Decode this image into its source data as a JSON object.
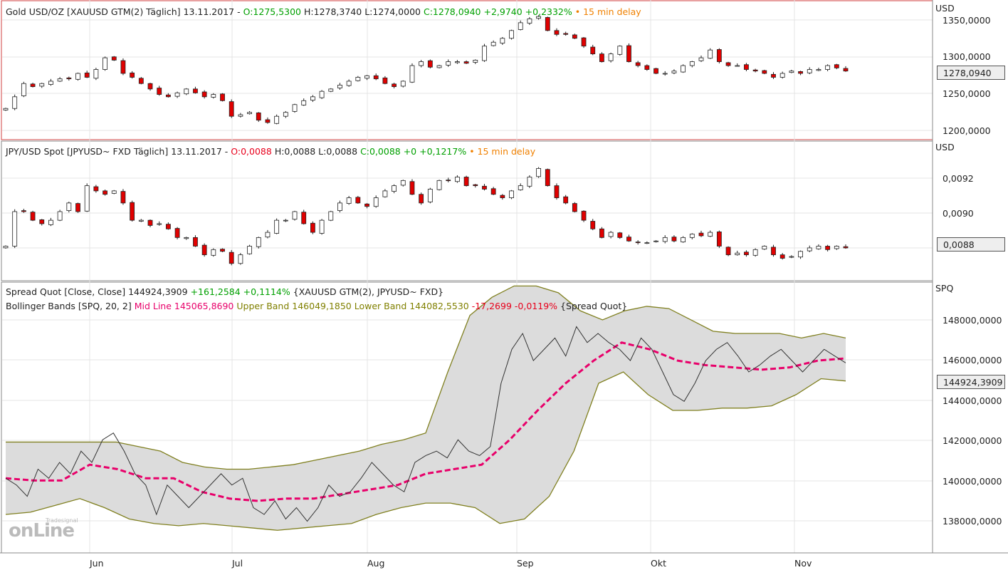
{
  "panel1": {
    "title": "Gold USD/OZ [XAUUSD GTM(2) Täglich] 13.11.2017 -",
    "open": "O:1275,5300",
    "high": "H:1278,3740",
    "low": "L:1274,0000",
    "close": "C:1278,0940 +2,9740 +0,2332%",
    "delay": "• 15 min delay",
    "unit": "USD",
    "ticks": [
      "1350,0000",
      "1300,0000",
      "1250,0000",
      "1200,0000"
    ],
    "last": "1278,0940"
  },
  "panel2": {
    "title": "JPY/USD Spot [JPYUSD~ FXD Täglich] 13.11.2017 -",
    "open": "O:0,0088",
    "high": "H:0,0088",
    "low": "L:0,0088",
    "close": "C:0,0088 +0 +0,1217%",
    "delay": "• 15 min delay",
    "unit": "USD",
    "ticks": [
      "0,0092",
      "0,0090"
    ],
    "last": "0,0088"
  },
  "panel3": {
    "line1": "Spread Quot [Close, Close]",
    "value": "144924,3909",
    "change": "+161,2584 +0,1114%",
    "symbols": "{XAUUSD GTM(2), JPYUSD~ FXD}",
    "bb": "Bollinger Bands [SPQ, 20, 2]",
    "mid": "Mid Line 145065,8690",
    "bands": "Upper Band 146049,1850 Lower Band 144082,5530",
    "bbchg": "-17,2699 -0,0119%",
    "src": "{Spread Quot}",
    "unit": "SPQ",
    "ticks": [
      "148000,0000",
      "146000,0000",
      "144000,0000",
      "142000,0000",
      "140000,0000",
      "138000,0000"
    ],
    "last": "144924,3909"
  },
  "months": [
    "Jun",
    "Jul",
    "Aug",
    "Sep",
    "Okt",
    "Nov"
  ],
  "logo": {
    "brand": "Tradesignal",
    "text": "onLine"
  },
  "chart_data": [
    {
      "type": "candlestick",
      "name": "Gold USD/OZ",
      "ylim": [
        1190,
        1360
      ],
      "closes": [
        1230,
        1245,
        1262,
        1258,
        1262,
        1265,
        1268,
        1268,
        1275,
        1270,
        1280,
        1295,
        1292,
        1275,
        1270,
        1262,
        1255,
        1248,
        1245,
        1250,
        1255,
        1250,
        1245,
        1248,
        1240,
        1220,
        1222,
        1225,
        1215,
        1212,
        1220,
        1225,
        1235,
        1240,
        1245,
        1252,
        1255,
        1260,
        1265,
        1270,
        1272,
        1268,
        1262,
        1258,
        1265,
        1285,
        1290,
        1283,
        1285,
        1290,
        1290,
        1288,
        1292,
        1310,
        1315,
        1320,
        1330,
        1340,
        1345,
        1348,
        1330,
        1325,
        1325,
        1320,
        1310,
        1300,
        1290,
        1300,
        1310,
        1290,
        1285,
        1280,
        1275,
        1275,
        1278,
        1285,
        1290,
        1295,
        1305,
        1290,
        1285,
        1285,
        1280,
        1278,
        1275,
        1270,
        1275,
        1278,
        1275,
        1280,
        1280,
        1285,
        1282,
        1278
      ]
    },
    {
      "type": "candlestick",
      "name": "JPY/USD Spot",
      "ylim": [
        0.0086,
        0.0094
      ],
      "closes": [
        0.0088,
        0.009,
        0.009,
        0.00895,
        0.00893,
        0.00895,
        0.009,
        0.00905,
        0.009,
        0.00915,
        0.00912,
        0.0091,
        0.00912,
        0.00905,
        0.00895,
        0.00895,
        0.00892,
        0.00893,
        0.0089,
        0.00885,
        0.00885,
        0.0088,
        0.00875,
        0.00878,
        0.00877,
        0.0087,
        0.00875,
        0.0088,
        0.00885,
        0.00888,
        0.00895,
        0.00895,
        0.009,
        0.00893,
        0.00888,
        0.00895,
        0.009,
        0.00905,
        0.00908,
        0.00905,
        0.00903,
        0.00908,
        0.00912,
        0.00915,
        0.00918,
        0.0091,
        0.00905,
        0.00913,
        0.00918,
        0.00918,
        0.0092,
        0.00915,
        0.00915,
        0.00913,
        0.0091,
        0.00908,
        0.00912,
        0.00915,
        0.0092,
        0.00925,
        0.00915,
        0.00908,
        0.00905,
        0.009,
        0.00895,
        0.0089,
        0.00885,
        0.00888,
        0.00885,
        0.00883,
        0.00882,
        0.00882,
        0.00883,
        0.00885,
        0.00883,
        0.00885,
        0.00887,
        0.00886,
        0.00888,
        0.0088,
        0.00875,
        0.00876,
        0.00875,
        0.00878,
        0.0088,
        0.00875,
        0.00873,
        0.00874,
        0.00877,
        0.00879,
        0.0088,
        0.00878,
        0.0088,
        0.00879
      ]
    },
    {
      "type": "line",
      "name": "Spread Quot / Bollinger Bands (thousands)",
      "ylim": [
        136.5,
        148.5
      ],
      "spread": [
        139.8,
        139.5,
        139,
        140.2,
        139.8,
        140.5,
        140,
        141,
        140.5,
        141.5,
        141.8,
        141,
        140,
        139.5,
        138.2,
        139.5,
        139,
        138.5,
        139,
        139.5,
        140,
        139.5,
        139.8,
        138.5,
        138.2,
        138.8,
        138,
        138.5,
        137.9,
        138.5,
        139.5,
        139,
        139.2,
        139.8,
        140.5,
        140,
        139.5,
        139.2,
        140.5,
        140.8,
        141,
        140.7,
        141.5,
        141,
        140.8,
        141.2,
        144,
        145.5,
        146.2,
        145,
        145.5,
        146,
        145.2,
        146.5,
        145.8,
        146.2,
        145.8,
        145.5,
        145,
        146,
        145.5,
        144.5,
        143.5,
        143.2,
        144,
        145,
        145.5,
        145.8,
        145.2,
        144.5,
        144.8,
        145.2,
        145.5,
        145,
        144.5,
        145,
        145.5,
        145.2,
        144.9
      ],
      "upper": [
        141.4,
        141.4,
        141.4,
        141.4,
        141.4,
        141.4,
        141.2,
        141,
        140.5,
        140.3,
        140.2,
        140.2,
        140.3,
        140.4,
        140.6,
        140.8,
        141,
        141.3,
        141.5,
        141.8,
        144.5,
        147,
        147.8,
        148.3,
        148.3,
        148,
        147.2,
        146.8,
        147.2,
        147.4,
        147.3,
        146.8,
        146.3,
        146.2,
        146.2,
        146.2,
        146,
        146.2,
        146
      ],
      "lower": [
        138.2,
        138.3,
        138.6,
        138.9,
        138.5,
        138,
        137.8,
        137.7,
        137.8,
        137.7,
        137.6,
        137.5,
        137.6,
        137.7,
        137.8,
        138.2,
        138.5,
        138.7,
        138.7,
        138.5,
        137.8,
        138,
        139,
        141,
        144,
        144.5,
        143.5,
        142.8,
        142.8,
        142.9,
        142.9,
        143,
        143.5,
        144.2,
        144.1
      ],
      "mid": [
        139.8,
        139.7,
        139.7,
        140.4,
        140.2,
        139.8,
        139.8,
        139.2,
        138.9,
        138.8,
        138.9,
        138.9,
        139.1,
        139.3,
        139.5,
        140,
        140.2,
        140.4,
        141.5,
        142.8,
        144,
        145,
        145.8,
        145.5,
        145,
        144.8,
        144.7,
        144.6,
        144.7,
        145,
        145.1
      ]
    }
  ]
}
